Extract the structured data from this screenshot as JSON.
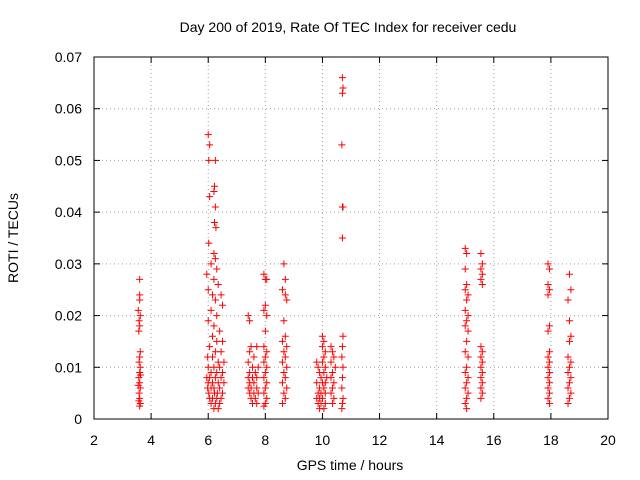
{
  "chart_data": {
    "type": "scatter",
    "title": "Day 200 of 2019, Rate Of TEC Index for receiver cedu",
    "xlabel": "GPS time / hours",
    "ylabel": "ROTI / TECUs",
    "xlim": [
      2,
      20
    ],
    "ylim": [
      0,
      0.07
    ],
    "x_ticks": [
      "2",
      "4",
      "6",
      "8",
      "10",
      "12",
      "14",
      "16",
      "18",
      "20"
    ],
    "y_ticks": [
      "0",
      "0.01",
      "0.02",
      "0.03",
      "0.04",
      "0.05",
      "0.06",
      "0.07"
    ],
    "grid": true,
    "marker": "+",
    "colors": {
      "points": "#ff0000",
      "grid": "#a0a0a0",
      "axes": "#000000",
      "background": "#ffffff"
    },
    "series": [
      {
        "name": "ROTI",
        "points": [
          [
            3.6,
            0.027
          ],
          [
            3.6,
            0.024
          ],
          [
            3.6,
            0.023
          ],
          [
            3.55,
            0.021
          ],
          [
            3.62,
            0.02
          ],
          [
            3.58,
            0.019
          ],
          [
            3.6,
            0.018
          ],
          [
            3.57,
            0.017
          ],
          [
            3.62,
            0.013
          ],
          [
            3.6,
            0.012
          ],
          [
            3.58,
            0.011
          ],
          [
            3.62,
            0.01
          ],
          [
            3.6,
            0.009
          ],
          [
            3.57,
            0.008
          ],
          [
            3.6,
            0.007
          ],
          [
            3.62,
            0.006
          ],
          [
            3.58,
            0.005
          ],
          [
            3.6,
            0.004
          ],
          [
            3.62,
            0.003
          ],
          [
            3.57,
            0.0035
          ],
          [
            3.6,
            0.0025
          ],
          [
            3.55,
            0.0065
          ],
          [
            3.63,
            0.0085
          ],
          [
            6.0,
            0.055
          ],
          [
            6.05,
            0.053
          ],
          [
            6.02,
            0.05
          ],
          [
            6.25,
            0.05
          ],
          [
            6.05,
            0.043
          ],
          [
            6.22,
            0.045
          ],
          [
            6.2,
            0.044
          ],
          [
            6.25,
            0.041
          ],
          [
            6.22,
            0.038
          ],
          [
            6.27,
            0.037
          ],
          [
            6.02,
            0.034
          ],
          [
            6.2,
            0.032
          ],
          [
            6.25,
            0.031
          ],
          [
            6.1,
            0.03
          ],
          [
            6.3,
            0.029
          ],
          [
            5.95,
            0.028
          ],
          [
            6.2,
            0.027
          ],
          [
            6.35,
            0.026
          ],
          [
            6.0,
            0.025
          ],
          [
            6.15,
            0.024
          ],
          [
            6.45,
            0.024
          ],
          [
            6.25,
            0.023
          ],
          [
            6.5,
            0.022
          ],
          [
            6.1,
            0.021
          ],
          [
            6.3,
            0.02
          ],
          [
            6.0,
            0.019
          ],
          [
            6.2,
            0.018
          ],
          [
            6.4,
            0.017
          ],
          [
            6.15,
            0.016
          ],
          [
            6.3,
            0.015
          ],
          [
            6.5,
            0.015
          ],
          [
            6.05,
            0.014
          ],
          [
            6.25,
            0.013
          ],
          [
            6.45,
            0.013
          ],
          [
            5.98,
            0.012
          ],
          [
            6.15,
            0.012
          ],
          [
            6.35,
            0.011
          ],
          [
            6.55,
            0.011
          ],
          [
            6.0,
            0.01
          ],
          [
            6.2,
            0.01
          ],
          [
            6.4,
            0.01
          ],
          [
            6.1,
            0.009
          ],
          [
            6.3,
            0.009
          ],
          [
            6.5,
            0.009
          ],
          [
            5.95,
            0.008
          ],
          [
            6.05,
            0.008
          ],
          [
            6.25,
            0.008
          ],
          [
            6.45,
            0.008
          ],
          [
            6.0,
            0.007
          ],
          [
            6.15,
            0.007
          ],
          [
            6.35,
            0.007
          ],
          [
            6.55,
            0.007
          ],
          [
            5.98,
            0.006
          ],
          [
            6.1,
            0.006
          ],
          [
            6.2,
            0.006
          ],
          [
            6.4,
            0.006
          ],
          [
            6.02,
            0.005
          ],
          [
            6.22,
            0.005
          ],
          [
            6.32,
            0.005
          ],
          [
            6.5,
            0.005
          ],
          [
            6.05,
            0.004
          ],
          [
            6.15,
            0.004
          ],
          [
            6.3,
            0.004
          ],
          [
            6.45,
            0.004
          ],
          [
            6.1,
            0.003
          ],
          [
            6.25,
            0.003
          ],
          [
            6.4,
            0.003
          ],
          [
            6.2,
            0.002
          ],
          [
            6.35,
            0.002
          ],
          [
            7.4,
            0.02
          ],
          [
            7.45,
            0.019
          ],
          [
            7.5,
            0.014
          ],
          [
            7.7,
            0.014
          ],
          [
            7.45,
            0.013
          ],
          [
            7.6,
            0.012
          ],
          [
            7.4,
            0.011
          ],
          [
            7.55,
            0.01
          ],
          [
            7.75,
            0.01
          ],
          [
            7.45,
            0.009
          ],
          [
            7.65,
            0.009
          ],
          [
            7.4,
            0.008
          ],
          [
            7.55,
            0.008
          ],
          [
            7.7,
            0.008
          ],
          [
            7.45,
            0.007
          ],
          [
            7.6,
            0.007
          ],
          [
            7.4,
            0.006
          ],
          [
            7.5,
            0.006
          ],
          [
            7.7,
            0.006
          ],
          [
            7.45,
            0.005
          ],
          [
            7.6,
            0.005
          ],
          [
            7.75,
            0.005
          ],
          [
            7.5,
            0.004
          ],
          [
            7.65,
            0.004
          ],
          [
            7.55,
            0.003
          ],
          [
            7.7,
            0.003
          ],
          [
            7.95,
            0.028
          ],
          [
            8.0,
            0.027
          ],
          [
            8.05,
            0.027
          ],
          [
            8.0,
            0.022
          ],
          [
            7.95,
            0.021
          ],
          [
            8.05,
            0.02
          ],
          [
            8.0,
            0.017
          ],
          [
            7.95,
            0.014
          ],
          [
            8.05,
            0.013
          ],
          [
            8.0,
            0.012
          ],
          [
            7.95,
            0.011
          ],
          [
            8.05,
            0.01
          ],
          [
            8.0,
            0.009
          ],
          [
            7.95,
            0.008
          ],
          [
            8.05,
            0.007
          ],
          [
            8.0,
            0.006
          ],
          [
            7.95,
            0.005
          ],
          [
            8.05,
            0.004
          ],
          [
            8.0,
            0.003
          ],
          [
            7.95,
            0.0025
          ],
          [
            8.65,
            0.03
          ],
          [
            8.7,
            0.027
          ],
          [
            8.6,
            0.025
          ],
          [
            8.7,
            0.024
          ],
          [
            8.75,
            0.023
          ],
          [
            8.65,
            0.019
          ],
          [
            8.7,
            0.016
          ],
          [
            8.6,
            0.015
          ],
          [
            8.75,
            0.014
          ],
          [
            8.65,
            0.013
          ],
          [
            8.7,
            0.012
          ],
          [
            8.6,
            0.011
          ],
          [
            8.75,
            0.01
          ],
          [
            8.65,
            0.009
          ],
          [
            8.7,
            0.008
          ],
          [
            8.6,
            0.007
          ],
          [
            8.75,
            0.006
          ],
          [
            8.65,
            0.005
          ],
          [
            8.7,
            0.004
          ],
          [
            8.6,
            0.003
          ],
          [
            9.8,
            0.011
          ],
          [
            9.85,
            0.01
          ],
          [
            9.9,
            0.009
          ],
          [
            9.95,
            0.008
          ],
          [
            10.0,
            0.007
          ],
          [
            9.8,
            0.007
          ],
          [
            9.9,
            0.006
          ],
          [
            10.05,
            0.006
          ],
          [
            9.85,
            0.005
          ],
          [
            9.95,
            0.005
          ],
          [
            10.1,
            0.005
          ],
          [
            9.8,
            0.004
          ],
          [
            9.9,
            0.004
          ],
          [
            10.0,
            0.004
          ],
          [
            9.85,
            0.003
          ],
          [
            9.95,
            0.003
          ],
          [
            10.1,
            0.003
          ],
          [
            9.9,
            0.002
          ],
          [
            10.05,
            0.002
          ],
          [
            10.0,
            0.016
          ],
          [
            10.05,
            0.015
          ],
          [
            10.0,
            0.014
          ],
          [
            10.1,
            0.013
          ],
          [
            10.05,
            0.012
          ],
          [
            10.0,
            0.011
          ],
          [
            10.1,
            0.01
          ],
          [
            10.05,
            0.009
          ],
          [
            10.15,
            0.008
          ],
          [
            10.1,
            0.007
          ],
          [
            10.3,
            0.014
          ],
          [
            10.35,
            0.013
          ],
          [
            10.4,
            0.012
          ],
          [
            10.3,
            0.011
          ],
          [
            10.45,
            0.01
          ],
          [
            10.35,
            0.009
          ],
          [
            10.3,
            0.008
          ],
          [
            10.4,
            0.007
          ],
          [
            10.35,
            0.006
          ],
          [
            10.3,
            0.005
          ],
          [
            10.4,
            0.004
          ],
          [
            10.35,
            0.003
          ],
          [
            10.7,
            0.066
          ],
          [
            10.72,
            0.064
          ],
          [
            10.7,
            0.063
          ],
          [
            10.68,
            0.053
          ],
          [
            10.7,
            0.041
          ],
          [
            10.72,
            0.041
          ],
          [
            10.7,
            0.035
          ],
          [
            10.72,
            0.016
          ],
          [
            10.7,
            0.014
          ],
          [
            10.68,
            0.012
          ],
          [
            10.72,
            0.01
          ],
          [
            10.7,
            0.008
          ],
          [
            10.68,
            0.006
          ],
          [
            10.72,
            0.004
          ],
          [
            10.7,
            0.003
          ],
          [
            10.68,
            0.002
          ],
          [
            15.0,
            0.033
          ],
          [
            15.05,
            0.032
          ],
          [
            15.0,
            0.029
          ],
          [
            15.05,
            0.026
          ],
          [
            15.0,
            0.025
          ],
          [
            15.1,
            0.024
          ],
          [
            15.05,
            0.023
          ],
          [
            15.0,
            0.021
          ],
          [
            15.1,
            0.02
          ],
          [
            15.05,
            0.019
          ],
          [
            15.0,
            0.018
          ],
          [
            15.1,
            0.017
          ],
          [
            15.05,
            0.015
          ],
          [
            15.0,
            0.013
          ],
          [
            15.1,
            0.012
          ],
          [
            15.05,
            0.01
          ],
          [
            15.0,
            0.009
          ],
          [
            15.1,
            0.008
          ],
          [
            15.05,
            0.007
          ],
          [
            15.0,
            0.006
          ],
          [
            15.1,
            0.005
          ],
          [
            15.05,
            0.004
          ],
          [
            15.0,
            0.003
          ],
          [
            15.05,
            0.002
          ],
          [
            15.55,
            0.032
          ],
          [
            15.6,
            0.03
          ],
          [
            15.55,
            0.029
          ],
          [
            15.6,
            0.028
          ],
          [
            15.55,
            0.027
          ],
          [
            15.6,
            0.026
          ],
          [
            15.55,
            0.014
          ],
          [
            15.6,
            0.013
          ],
          [
            15.55,
            0.012
          ],
          [
            15.6,
            0.011
          ],
          [
            15.55,
            0.01
          ],
          [
            15.6,
            0.009
          ],
          [
            15.55,
            0.008
          ],
          [
            15.6,
            0.007
          ],
          [
            15.55,
            0.006
          ],
          [
            15.6,
            0.005
          ],
          [
            15.55,
            0.004
          ],
          [
            17.9,
            0.03
          ],
          [
            17.95,
            0.029
          ],
          [
            17.9,
            0.026
          ],
          [
            17.95,
            0.025
          ],
          [
            17.9,
            0.024
          ],
          [
            17.95,
            0.018
          ],
          [
            17.9,
            0.017
          ],
          [
            17.95,
            0.013
          ],
          [
            17.9,
            0.012
          ],
          [
            17.95,
            0.011
          ],
          [
            17.9,
            0.01
          ],
          [
            17.95,
            0.009
          ],
          [
            17.9,
            0.008
          ],
          [
            17.95,
            0.007
          ],
          [
            17.9,
            0.006
          ],
          [
            17.95,
            0.005
          ],
          [
            17.9,
            0.004
          ],
          [
            17.95,
            0.003
          ],
          [
            18.65,
            0.028
          ],
          [
            18.7,
            0.025
          ],
          [
            18.6,
            0.023
          ],
          [
            18.65,
            0.019
          ],
          [
            18.7,
            0.016
          ],
          [
            18.65,
            0.015
          ],
          [
            18.6,
            0.012
          ],
          [
            18.7,
            0.011
          ],
          [
            18.65,
            0.01
          ],
          [
            18.6,
            0.009
          ],
          [
            18.7,
            0.008
          ],
          [
            18.65,
            0.007
          ],
          [
            18.6,
            0.006
          ],
          [
            18.7,
            0.005
          ],
          [
            18.65,
            0.004
          ],
          [
            18.6,
            0.003
          ]
        ]
      }
    ]
  }
}
